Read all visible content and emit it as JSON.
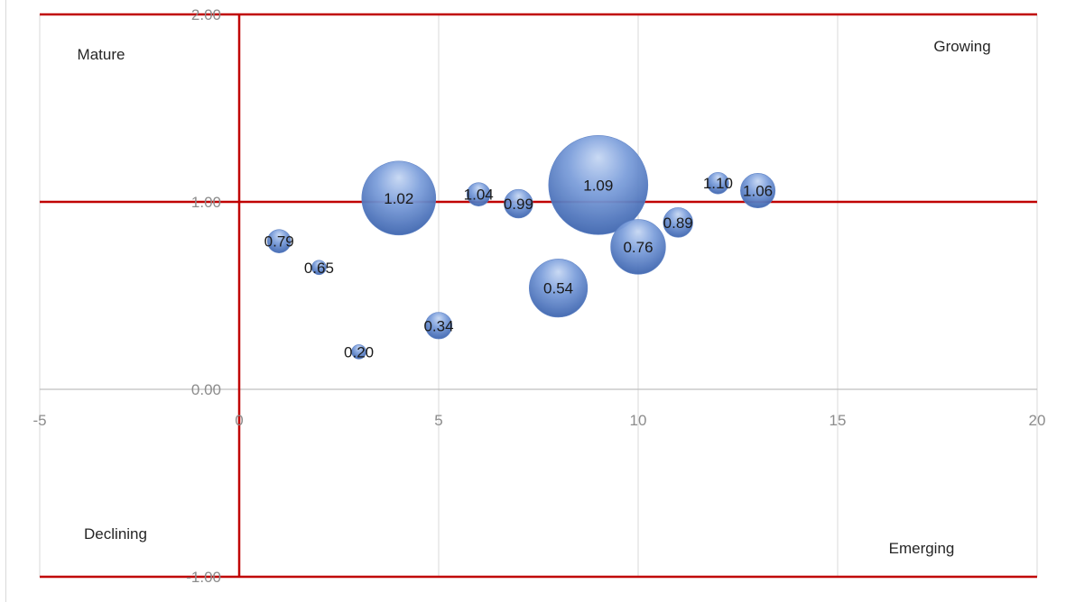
{
  "chart_data": {
    "type": "bubble",
    "xlim": [
      -5,
      20
    ],
    "ylim": [
      -1,
      2
    ],
    "x_ticks": [
      "-5",
      "0",
      "5",
      "10",
      "15",
      "20"
    ],
    "y_ticks": [
      "-1.00",
      "0.00",
      "1.00",
      "2.00"
    ],
    "grid": true,
    "quadrant_lines": {
      "x": 0,
      "y": 1,
      "color": "#c00000"
    },
    "bubble_color": "#6f93d6",
    "quadrant_labels": {
      "top_left": "Mature",
      "top_right": "Growing",
      "bottom_left": "Declining",
      "bottom_right": "Emerging"
    },
    "points": [
      {
        "x": 1,
        "y": 0.79,
        "size": 1.0,
        "label": "0.79"
      },
      {
        "x": 2,
        "y": 0.65,
        "size": 0.35,
        "label": "0.65"
      },
      {
        "x": 3,
        "y": 0.2,
        "size": 0.25,
        "label": "0.20"
      },
      {
        "x": 4,
        "y": 1.02,
        "size": 10.0,
        "label": "1.02"
      },
      {
        "x": 5,
        "y": 0.34,
        "size": 1.3,
        "label": "0.34"
      },
      {
        "x": 6,
        "y": 1.04,
        "size": 1.0,
        "label": "1.04"
      },
      {
        "x": 7,
        "y": 0.99,
        "size": 1.5,
        "label": "0.99"
      },
      {
        "x": 8,
        "y": 0.54,
        "size": 6.2,
        "label": "0.54"
      },
      {
        "x": 9,
        "y": 1.09,
        "size": 18.0,
        "label": "1.09"
      },
      {
        "x": 10,
        "y": 0.76,
        "size": 5.5,
        "label": "0.76"
      },
      {
        "x": 11,
        "y": 0.89,
        "size": 1.6,
        "label": "0.89"
      },
      {
        "x": 12,
        "y": 1.1,
        "size": 0.85,
        "label": "1.10"
      },
      {
        "x": 13,
        "y": 1.06,
        "size": 2.2,
        "label": "1.06"
      }
    ]
  }
}
